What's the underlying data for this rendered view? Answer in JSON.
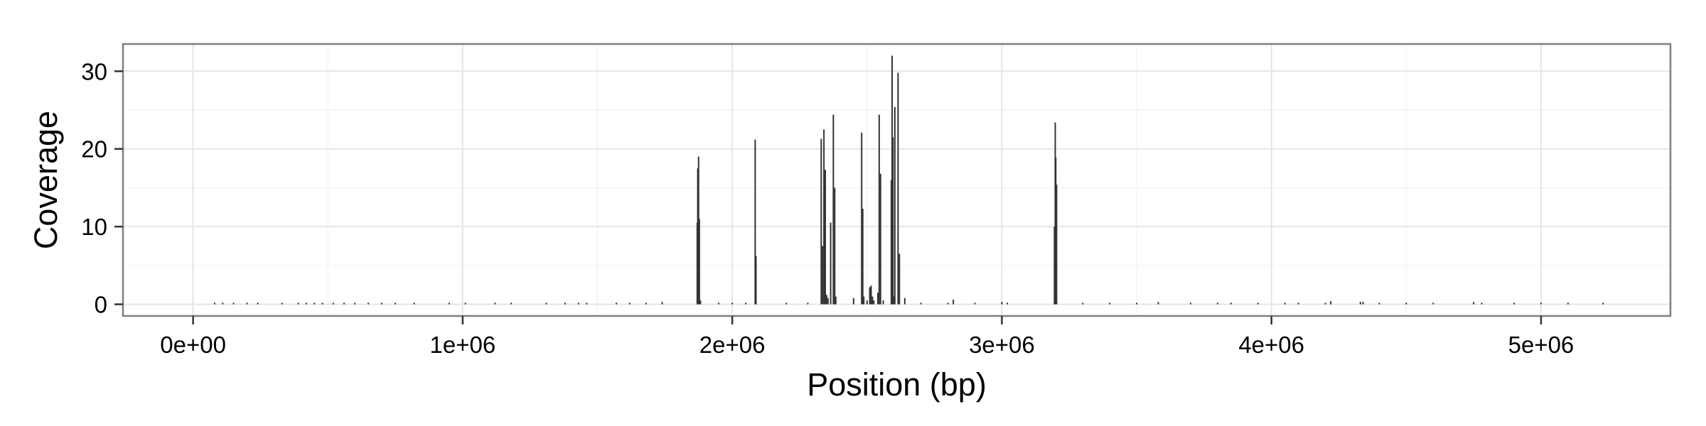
{
  "chart_data": {
    "type": "bar",
    "title": "",
    "xlabel": "Position (bp)",
    "ylabel": "Coverage",
    "xlim": [
      -260000,
      5480000
    ],
    "ylim": [
      -1.5,
      33.5
    ],
    "x_ticks": [
      {
        "value": 0,
        "label": "0e+00"
      },
      {
        "value": 1000000,
        "label": "1e+06"
      },
      {
        "value": 2000000,
        "label": "2e+06"
      },
      {
        "value": 3000000,
        "label": "3e+06"
      },
      {
        "value": 4000000,
        "label": "4e+06"
      },
      {
        "value": 5000000,
        "label": "5e+06"
      }
    ],
    "y_ticks": [
      {
        "value": 0,
        "label": "0"
      },
      {
        "value": 10,
        "label": "10"
      },
      {
        "value": 20,
        "label": "20"
      },
      {
        "value": 30,
        "label": "30"
      }
    ],
    "grid": true,
    "bar_color": "#333333",
    "series": [
      {
        "x": [
          80000,
          110000,
          150000,
          200000,
          240000,
          330000,
          390000,
          420000,
          450000,
          480000,
          520000,
          560000,
          600000,
          650000,
          700000,
          750000,
          820000,
          950000,
          1010000,
          1120000,
          1180000,
          1310000,
          1380000,
          1430000,
          1460000,
          1570000,
          1620000,
          1680000,
          1740000,
          1870000,
          1872000,
          1875000,
          1878000,
          1882000,
          1950000,
          2000000,
          2050000,
          2085000,
          2088000,
          2200000,
          2280000,
          2330000,
          2335000,
          2340000,
          2345000,
          2350000,
          2355000,
          2365000,
          2375000,
          2380000,
          2384000,
          2450000,
          2480000,
          2484000,
          2488000,
          2500000,
          2510000,
          2515000,
          2520000,
          2525000,
          2540000,
          2545000,
          2550000,
          2560000,
          2590000,
          2593000,
          2596000,
          2600000,
          2603000,
          2615000,
          2620000,
          2640000,
          2700000,
          2800000,
          2820000,
          2900000,
          3000000,
          3020000,
          3195000,
          3198000,
          3200000,
          3203000,
          3300000,
          3400000,
          3500000,
          3580000,
          3700000,
          3800000,
          3850000,
          3950000,
          4050000,
          4100000,
          4200000,
          4220000,
          4330000,
          4340000,
          4400000,
          4500000,
          4600000,
          4750000,
          4780000,
          4900000,
          5000000,
          5100000,
          5230000
        ],
        "values": [
          0.2,
          0.2,
          0.2,
          0.2,
          0.2,
          0.2,
          0.2,
          0.2,
          0.2,
          0.2,
          0.2,
          0.2,
          0.2,
          0.2,
          0.2,
          0.2,
          0.2,
          0.2,
          0.2,
          0.2,
          0.2,
          0.2,
          0.2,
          0.2,
          0.2,
          0.2,
          0.2,
          0.2,
          0.3,
          10.5,
          17.5,
          19.0,
          11.0,
          0.5,
          0.2,
          0.2,
          0.2,
          21.2,
          6.2,
          0.2,
          0.2,
          21.3,
          7.5,
          22.5,
          17.3,
          1.2,
          0.8,
          10.5,
          24.4,
          15.0,
          1.0,
          0.8,
          22.1,
          12.3,
          1.0,
          0.5,
          2.2,
          2.4,
          1.0,
          0.5,
          1.5,
          24.4,
          16.8,
          0.5,
          16.0,
          32.0,
          21.5,
          1.0,
          25.4,
          29.8,
          6.5,
          0.8,
          0.2,
          0.2,
          0.6,
          0.2,
          0.3,
          0.2,
          10.0,
          23.4,
          18.9,
          15.4,
          0.2,
          0.2,
          0.2,
          0.3,
          0.2,
          0.2,
          0.2,
          0.2,
          0.2,
          0.2,
          0.2,
          0.4,
          0.3,
          0.3,
          0.2,
          0.2,
          0.2,
          0.3,
          0.2,
          0.2,
          0.2,
          0.2,
          0.2
        ]
      }
    ]
  }
}
